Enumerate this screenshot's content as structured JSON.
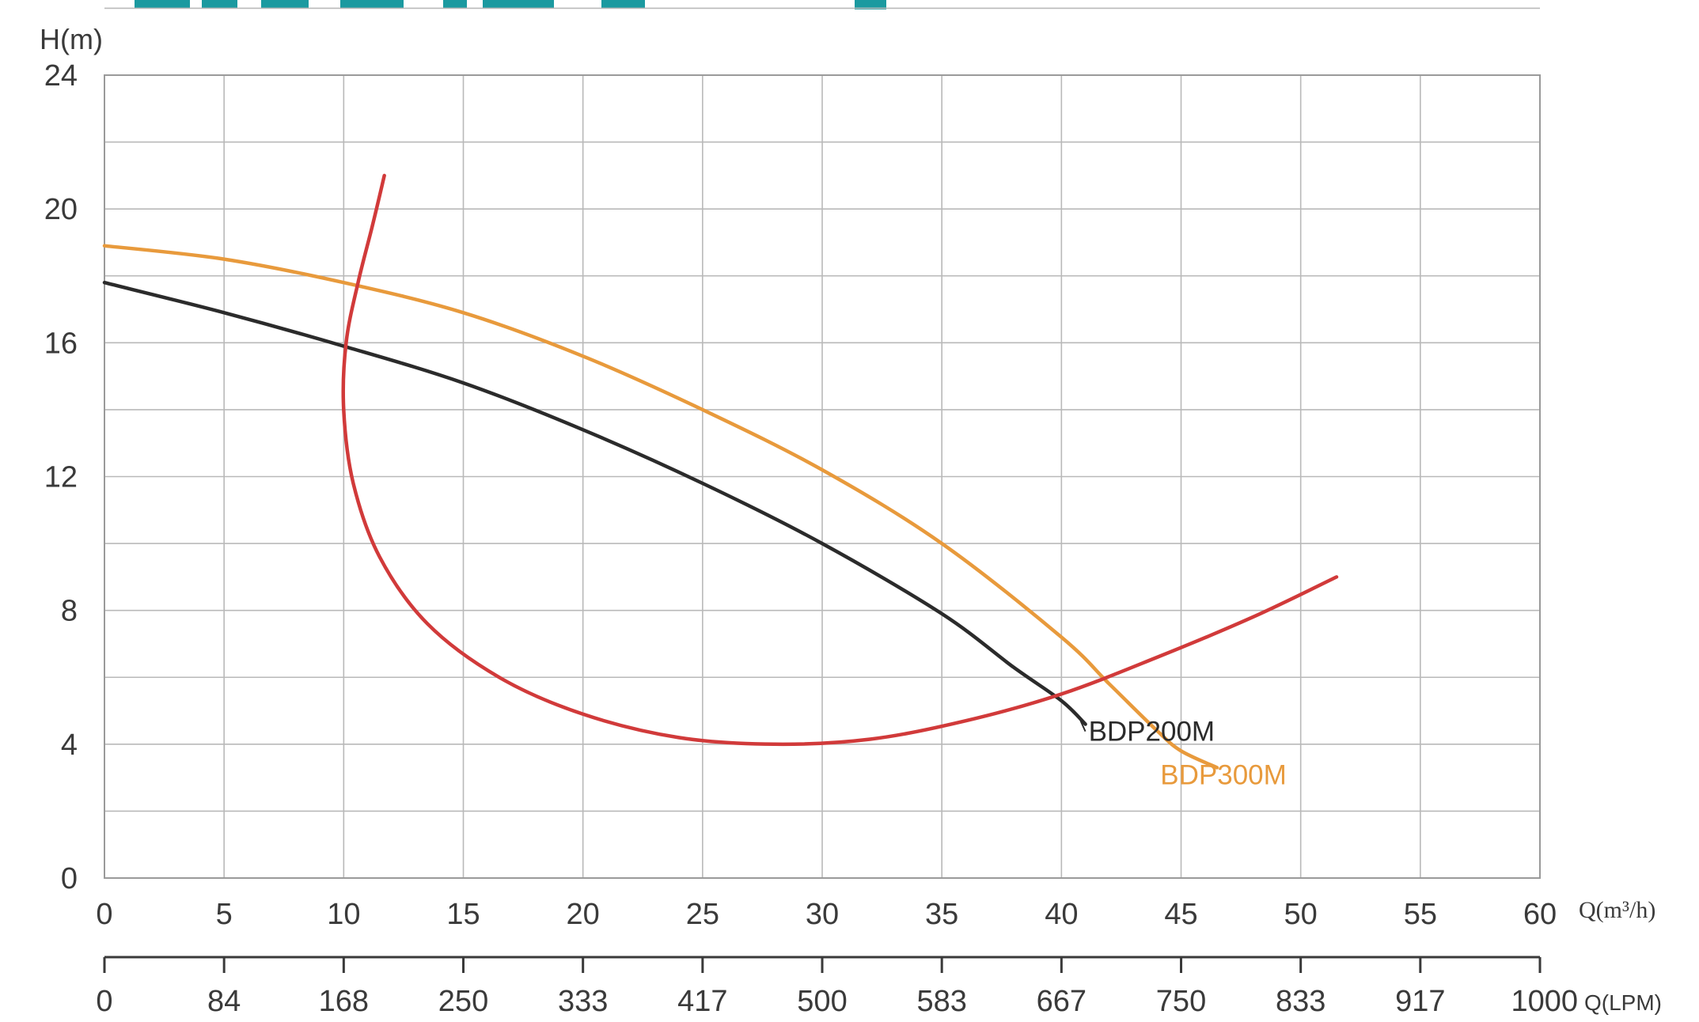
{
  "chart_data": {
    "type": "line",
    "title": "",
    "ylabel": "H(m)",
    "xlabel": "Q(m³/h)",
    "secondary_xlabel": "Q(LPM)",
    "xlim": [
      0,
      60
    ],
    "ylim": [
      0,
      24
    ],
    "x_ticks": [
      0,
      5,
      10,
      15,
      20,
      25,
      30,
      35,
      40,
      45,
      50,
      55,
      60
    ],
    "y_ticks": [
      0,
      4,
      8,
      12,
      16,
      20,
      24
    ],
    "secondary_x_ticks": [
      "0",
      "84",
      "168",
      "250",
      "333",
      "417",
      "500",
      "583",
      "667",
      "750",
      "833",
      "917",
      "1000"
    ],
    "grid": true,
    "series": [
      {
        "name": "BDP300M",
        "color": "#e89a3c",
        "x": [
          0,
          5,
          10,
          15,
          20,
          25,
          30,
          35,
          40,
          42,
          44,
          45,
          46.5
        ],
        "y": [
          18.9,
          18.5,
          17.8,
          16.9,
          15.6,
          14.0,
          12.2,
          10.0,
          7.2,
          5.8,
          4.4,
          3.8,
          3.3
        ]
      },
      {
        "name": "BDP200M",
        "color": "#2b2b2b",
        "x": [
          0,
          5,
          10,
          15,
          20,
          25,
          30,
          35,
          38,
          40,
          41
        ],
        "y": [
          17.8,
          16.9,
          15.9,
          14.8,
          13.4,
          11.8,
          10.0,
          7.9,
          6.3,
          5.3,
          4.6
        ]
      },
      {
        "color": "#d13a3a",
        "x": [
          11.7,
          11.2,
          10.6,
          10.1,
          10.0,
          10.4,
          11.5,
          13.5,
          16.5,
          20.0,
          24.0,
          28.0,
          32.0,
          36.0,
          40.0,
          44.0,
          48.0,
          51.5
        ],
        "y": [
          21.0,
          19.5,
          17.8,
          16.0,
          14.0,
          11.8,
          9.6,
          7.6,
          6.0,
          4.9,
          4.2,
          4.0,
          4.15,
          4.7,
          5.5,
          6.6,
          7.8,
          9.0
        ]
      }
    ],
    "annotations": [
      {
        "text": "BDP200M",
        "x": 41,
        "y": 4.1
      },
      {
        "text": "BDP300M",
        "x": 44,
        "y": 2.8
      }
    ]
  }
}
